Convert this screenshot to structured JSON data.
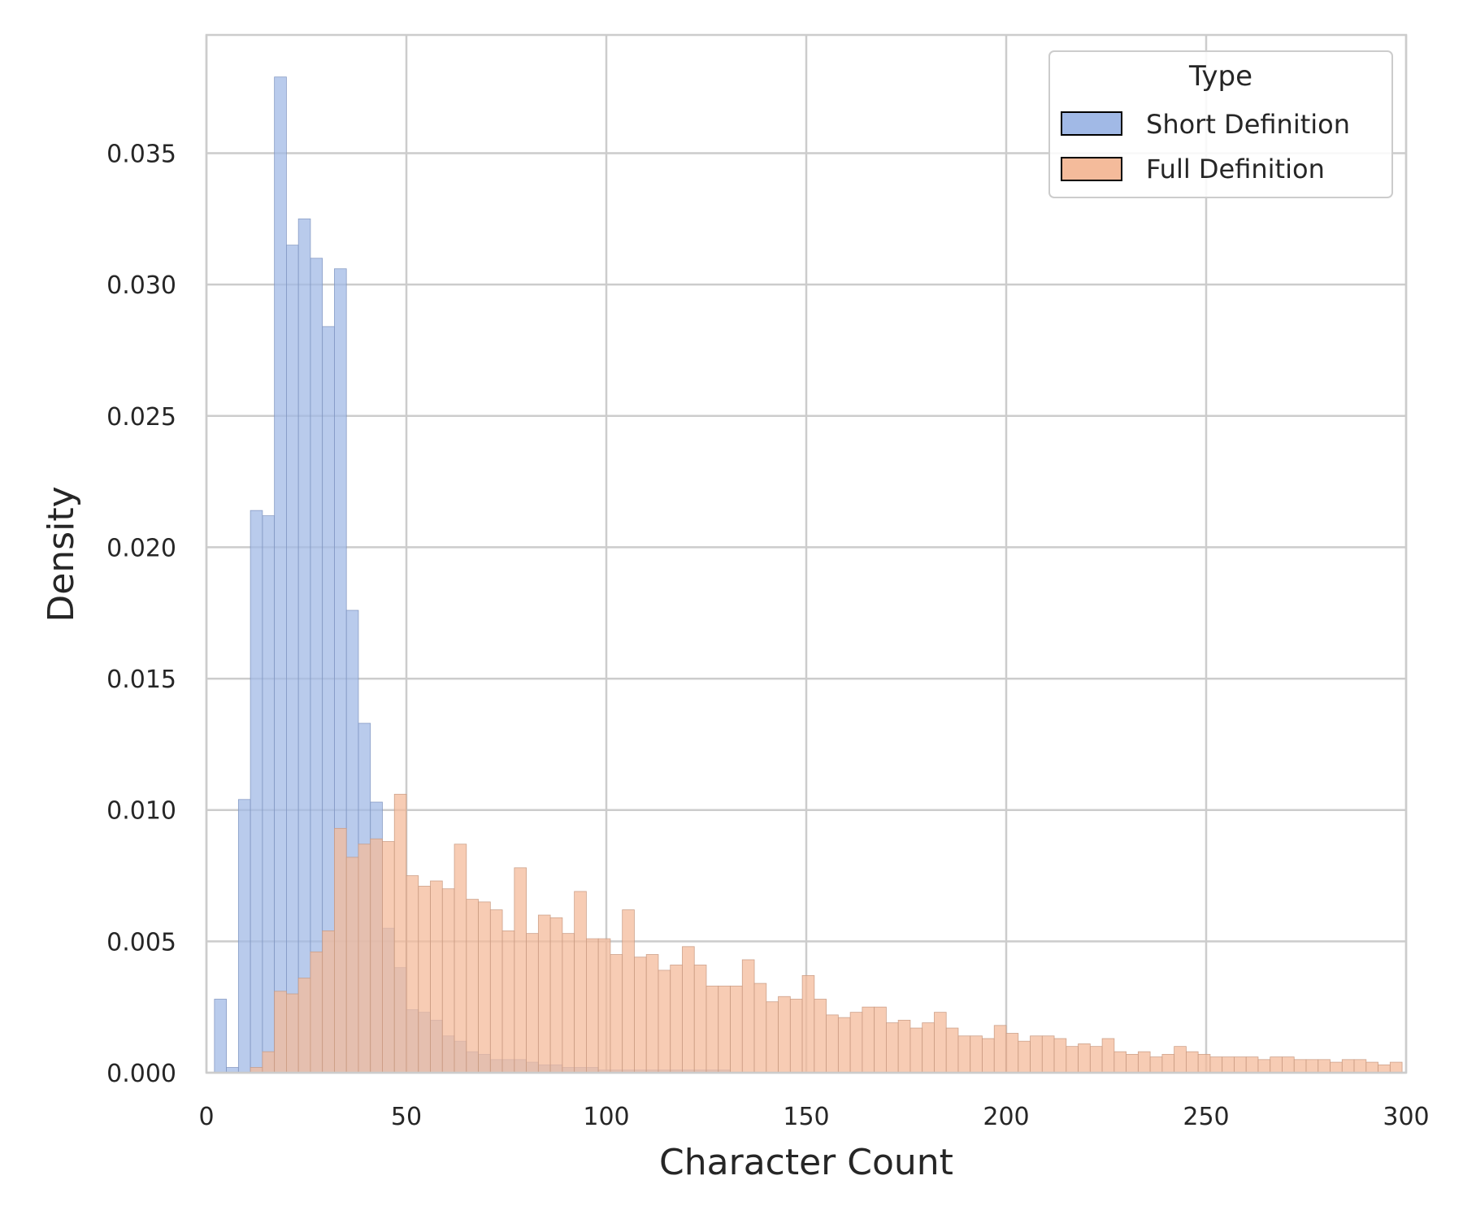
{
  "chart_data": {
    "type": "bar",
    "histogram": true,
    "bin_width": 3,
    "x_start": 2,
    "xlabel": "Character Count",
    "ylabel": "Density",
    "xlim": [
      0,
      300
    ],
    "ylim": [
      0,
      0.0395
    ],
    "x_ticks": [
      0,
      50,
      100,
      150,
      200,
      250,
      300
    ],
    "x_tick_labels": [
      "0",
      "50",
      "100",
      "150",
      "200",
      "250",
      "300"
    ],
    "y_ticks": [
      0,
      0.005,
      0.01,
      0.015,
      0.02,
      0.025,
      0.03,
      0.035
    ],
    "y_tick_labels": [
      "0.000",
      "0.005",
      "0.010",
      "0.015",
      "0.020",
      "0.025",
      "0.030",
      "0.035"
    ],
    "grid": true,
    "legend": {
      "title": "Type",
      "placement": "top-right",
      "entries": [
        "Short Definition",
        "Full Definition"
      ]
    },
    "series": [
      {
        "name": "Short Definition",
        "color": "#a1b9e6",
        "stroke": "#7f95c0",
        "values": [
          0.0028,
          0.0002,
          0.0104,
          0.0214,
          0.0212,
          0.0379,
          0.0315,
          0.0325,
          0.031,
          0.0284,
          0.0306,
          0.0176,
          0.0133,
          0.0103,
          0.0055,
          0.004,
          0.0024,
          0.0023,
          0.002,
          0.0014,
          0.0012,
          0.0008,
          0.0007,
          0.0005,
          0.0005,
          0.0005,
          0.0004,
          0.0003,
          0.0003,
          0.0002,
          0.0002,
          0.0002,
          0.0001,
          0.0001,
          0.0001,
          0.0001,
          0.0001,
          0.0001,
          0.0001,
          0.0001,
          0.0001,
          0.0001,
          0.0001
        ]
      },
      {
        "name": "Full Definition",
        "color": "#f4bb9b",
        "stroke": "#c99a82",
        "values": [
          0,
          0,
          0,
          0.0002,
          0.0008,
          0.0031,
          0.003,
          0.0036,
          0.0046,
          0.0054,
          0.0093,
          0.0082,
          0.0087,
          0.0089,
          0.0088,
          0.0106,
          0.0075,
          0.0071,
          0.0073,
          0.007,
          0.0087,
          0.0066,
          0.0065,
          0.0062,
          0.0054,
          0.0078,
          0.0053,
          0.006,
          0.0059,
          0.0053,
          0.0069,
          0.0051,
          0.0051,
          0.0045,
          0.0062,
          0.0044,
          0.0045,
          0.0039,
          0.0041,
          0.0048,
          0.0041,
          0.0033,
          0.0033,
          0.0033,
          0.0043,
          0.0034,
          0.0027,
          0.0029,
          0.0028,
          0.0037,
          0.0028,
          0.0022,
          0.0021,
          0.0023,
          0.0025,
          0.0025,
          0.0019,
          0.002,
          0.0017,
          0.0019,
          0.0023,
          0.0017,
          0.0014,
          0.0014,
          0.0013,
          0.0018,
          0.0015,
          0.0012,
          0.0014,
          0.0014,
          0.0013,
          0.001,
          0.0011,
          0.001,
          0.0013,
          0.0008,
          0.0007,
          0.0008,
          0.0006,
          0.0007,
          0.001,
          0.0008,
          0.0007,
          0.0006,
          0.0006,
          0.0006,
          0.0006,
          0.0005,
          0.0006,
          0.0006,
          0.0005,
          0.0005,
          0.0005,
          0.0004,
          0.0005,
          0.0005,
          0.0004,
          0.0003,
          0.0004
        ]
      }
    ]
  }
}
